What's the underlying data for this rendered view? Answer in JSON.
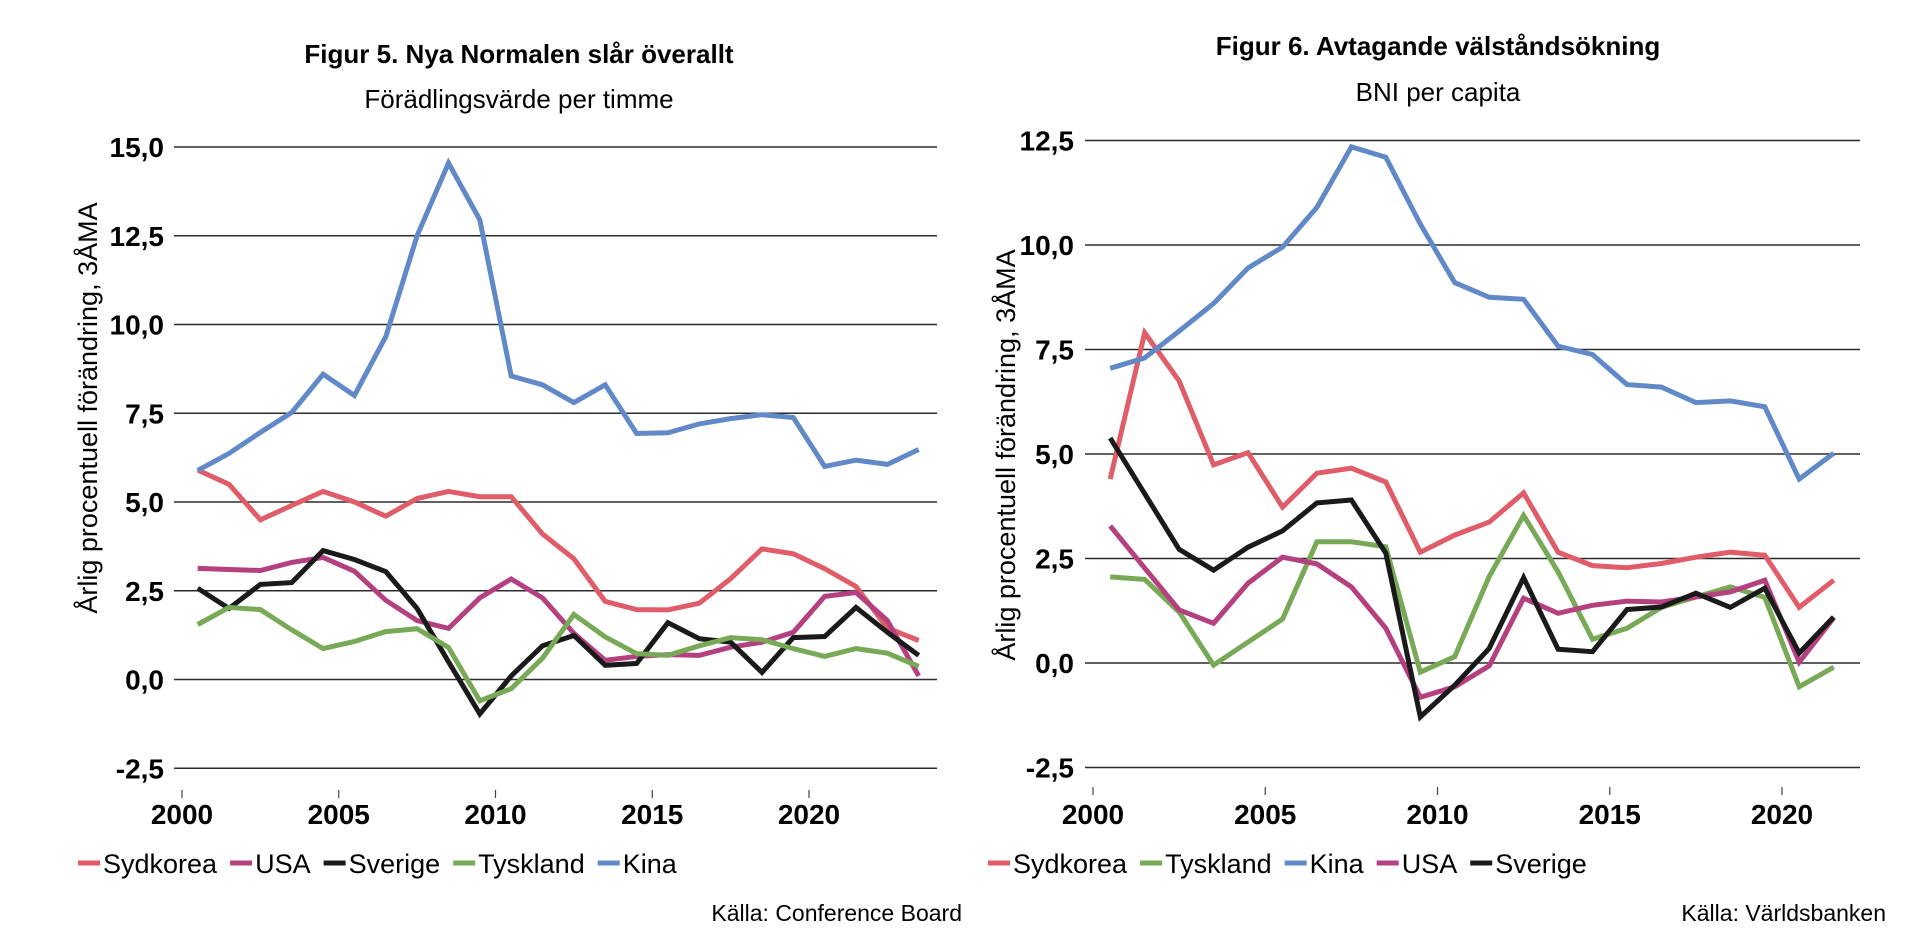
{
  "chart_data": [
    {
      "type": "line",
      "title": "Figur 5. Nya Normalen slår överallt",
      "subtitle": "Förädlingsvärde per timme",
      "xlabel": "",
      "ylabel": "Årlig procentuell förändring, 3ÅMA",
      "ylim": [
        -2.5,
        15.0
      ],
      "xlim": [
        2000,
        2024
      ],
      "yticks": [
        -2.5,
        0.0,
        2.5,
        5.0,
        7.5,
        10.0,
        12.5,
        15.0
      ],
      "ytick_labels": [
        "-2,5",
        "0,0",
        "2,5",
        "5,0",
        "7,5",
        "10,0",
        "12,5",
        "15,0"
      ],
      "xticks": [
        2000,
        2005,
        2010,
        2015,
        2020
      ],
      "xtick_labels": [
        "2000",
        "2005",
        "2010",
        "2015",
        "2020"
      ],
      "grid": true,
      "legend_position": "bottom",
      "source": "Källa: Conference Board",
      "x": [
        2000.5,
        2001.5,
        2002.5,
        2003.5,
        2004.5,
        2005.5,
        2006.5,
        2007.5,
        2008.5,
        2009.5,
        2010.5,
        2011.5,
        2012.5,
        2013.5,
        2014.5,
        2015.5,
        2016.5,
        2017.5,
        2018.5,
        2019.5,
        2020.5,
        2021.5,
        2022.5,
        2023.5
      ],
      "series": [
        {
          "name": "Sydkorea",
          "color": "#e05c68",
          "values": [
            5.9,
            5.5,
            4.5,
            4.9,
            5.3,
            5.0,
            4.6,
            5.1,
            5.3,
            5.15,
            5.15,
            4.1,
            3.4,
            2.2,
            1.97,
            1.96,
            2.15,
            2.84,
            3.68,
            3.54,
            3.12,
            2.62,
            1.45,
            1.1
          ]
        },
        {
          "name": "USA",
          "color": "#b5407f",
          "values": [
            3.13,
            3.1,
            3.07,
            3.3,
            3.44,
            3.05,
            2.23,
            1.66,
            1.44,
            2.3,
            2.83,
            2.3,
            1.3,
            0.54,
            0.65,
            0.7,
            0.68,
            0.91,
            1.05,
            1.33,
            2.34,
            2.45,
            1.66,
            0.1
          ]
        },
        {
          "name": "Sverige",
          "color": "#1a1a1a",
          "values": [
            2.57,
            2.0,
            2.68,
            2.73,
            3.63,
            3.38,
            3.04,
            2.0,
            0.5,
            -0.97,
            0.1,
            0.95,
            1.24,
            0.4,
            0.45,
            1.6,
            1.15,
            1.05,
            0.2,
            1.18,
            1.21,
            2.03,
            1.33,
            0.68
          ]
        },
        {
          "name": "Tyskland",
          "color": "#77a957",
          "values": [
            1.55,
            2.03,
            1.97,
            1.4,
            0.87,
            1.07,
            1.35,
            1.43,
            0.9,
            -0.6,
            -0.26,
            0.6,
            1.83,
            1.2,
            0.73,
            0.68,
            0.95,
            1.18,
            1.12,
            0.87,
            0.65,
            0.87,
            0.74,
            0.37
          ]
        },
        {
          "name": "Kina",
          "color": "#6189c8",
          "values": [
            5.89,
            6.37,
            6.96,
            7.52,
            8.6,
            8.0,
            9.66,
            12.5,
            14.55,
            12.95,
            8.55,
            8.3,
            7.8,
            8.3,
            6.93,
            6.95,
            7.2,
            7.35,
            7.46,
            7.38,
            6.0,
            6.18,
            6.06,
            6.48
          ]
        }
      ]
    },
    {
      "type": "line",
      "title": "Figur 6. Avtagande välståndsökning",
      "subtitle": "BNI per capita",
      "xlabel": "",
      "ylabel": "Årlig procentuell förändring, 3ÅMA",
      "ylim": [
        -2.5,
        12.5
      ],
      "xlim": [
        2000,
        2022
      ],
      "yticks": [
        -2.5,
        0.0,
        2.5,
        5.0,
        7.5,
        10.0,
        12.5
      ],
      "ytick_labels": [
        "-2,5",
        "0,0",
        "2,5",
        "5,0",
        "7,5",
        "10,0",
        "12,5"
      ],
      "xticks": [
        2000,
        2005,
        2010,
        2015,
        2020
      ],
      "xtick_labels": [
        "2000",
        "2005",
        "2010",
        "2015",
        "2020"
      ],
      "grid": true,
      "legend_position": "bottom",
      "source": "Källa: Världsbanken",
      "x": [
        2000.5,
        2001.5,
        2002.5,
        2003.5,
        2004.5,
        2005.5,
        2006.5,
        2007.5,
        2008.5,
        2009.5,
        2010.5,
        2011.5,
        2012.5,
        2013.5,
        2014.5,
        2015.5,
        2016.5,
        2017.5,
        2018.5,
        2019.5,
        2020.5,
        2021.5
      ],
      "series": [
        {
          "name": "Sydkorea",
          "color": "#e05c68",
          "values": [
            4.4,
            7.9,
            6.75,
            4.74,
            5.03,
            3.73,
            4.54,
            4.66,
            4.33,
            2.65,
            3.06,
            3.37,
            4.07,
            2.65,
            2.33,
            2.28,
            2.38,
            2.53,
            2.65,
            2.58,
            1.33,
            1.98
          ]
        },
        {
          "name": "Tyskland",
          "color": "#77a957",
          "values": [
            2.06,
            2.0,
            1.22,
            -0.05,
            0.5,
            1.05,
            2.9,
            2.9,
            2.78,
            -0.22,
            0.15,
            2.07,
            3.53,
            2.18,
            0.57,
            0.83,
            1.33,
            1.58,
            1.82,
            1.57,
            -0.57,
            -0.1
          ]
        },
        {
          "name": "Kina",
          "color": "#6189c8",
          "values": [
            7.05,
            7.3,
            7.94,
            8.6,
            9.45,
            9.95,
            10.9,
            12.35,
            12.1,
            10.5,
            9.1,
            8.75,
            8.7,
            7.58,
            7.38,
            6.66,
            6.6,
            6.23,
            6.27,
            6.13,
            4.4,
            5.02
          ]
        },
        {
          "name": "USA",
          "color": "#b5407f",
          "values": [
            3.28,
            2.27,
            1.27,
            0.95,
            1.91,
            2.53,
            2.37,
            1.82,
            0.83,
            -0.82,
            -0.57,
            -0.07,
            1.55,
            1.19,
            1.38,
            1.48,
            1.46,
            1.58,
            1.7,
            1.98,
            0.02,
            1.08
          ]
        },
        {
          "name": "Sverige",
          "color": "#1a1a1a",
          "values": [
            5.38,
            4.05,
            2.72,
            2.22,
            2.77,
            3.16,
            3.83,
            3.9,
            2.63,
            -1.29,
            -0.53,
            0.35,
            2.04,
            0.33,
            0.27,
            1.28,
            1.34,
            1.67,
            1.33,
            1.79,
            0.24,
            1.1
          ]
        }
      ]
    }
  ]
}
